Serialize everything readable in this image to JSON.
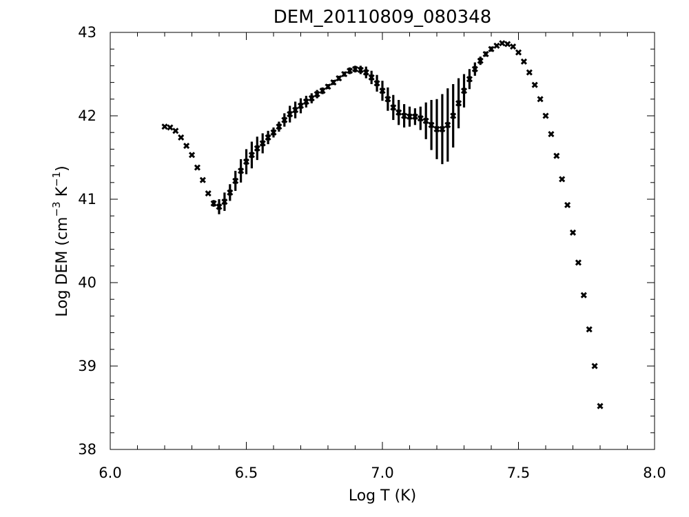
{
  "chart_data": {
    "type": "scatter",
    "title": "DEM_20110809_080348",
    "xlabel": "Log T (K)",
    "ylabel_parts": {
      "prefix": "Log DEM (cm",
      "exp1": "−3",
      "middle": " K",
      "exp2": "−1",
      "suffix": ")"
    },
    "xlim": [
      6.0,
      8.0
    ],
    "ylim": [
      38,
      43
    ],
    "xticks": [
      6.0,
      6.5,
      7.0,
      7.5,
      8.0
    ],
    "xtick_labels": [
      "6.0",
      "6.5",
      "7.0",
      "7.5",
      "8.0"
    ],
    "yticks": [
      38,
      39,
      40,
      41,
      42,
      43
    ],
    "ytick_labels": [
      "38",
      "39",
      "40",
      "41",
      "42",
      "43"
    ],
    "x_minor_step": 0.1,
    "y_minor_step": 0.2,
    "marker": "x",
    "color": "#000000",
    "grid": false,
    "series": [
      {
        "x": [
          6.2,
          6.22,
          6.24,
          6.26,
          6.28,
          6.3,
          6.32,
          6.34,
          6.36,
          6.38,
          6.4,
          6.42,
          6.44,
          6.46,
          6.48,
          6.5,
          6.52,
          6.54,
          6.56,
          6.58,
          6.6,
          6.62,
          6.64,
          6.66,
          6.68,
          6.7,
          6.72,
          6.74,
          6.76,
          6.78,
          6.8,
          6.82,
          6.84,
          6.86,
          6.88,
          6.9,
          6.92,
          6.94,
          6.96,
          6.98,
          7.0,
          7.02,
          7.04,
          7.06,
          7.08,
          7.1,
          7.12,
          7.14,
          7.16,
          7.18,
          7.2,
          7.22,
          7.24,
          7.26,
          7.28,
          7.3,
          7.32,
          7.34,
          7.36,
          7.38,
          7.4,
          7.42,
          7.44,
          7.46,
          7.48,
          7.5,
          7.52,
          7.54,
          7.56,
          7.58,
          7.6,
          7.62,
          7.64,
          7.66,
          7.68,
          7.7,
          7.72,
          7.74,
          7.76,
          7.78,
          7.8
        ],
        "y": [
          41.87,
          41.86,
          41.82,
          41.74,
          41.64,
          41.53,
          41.38,
          41.23,
          41.07,
          40.95,
          40.91,
          40.97,
          41.08,
          41.22,
          41.34,
          41.45,
          41.53,
          41.61,
          41.67,
          41.74,
          41.8,
          41.87,
          41.95,
          42.02,
          42.07,
          42.12,
          42.17,
          42.21,
          42.26,
          42.3,
          42.35,
          42.4,
          42.45,
          42.5,
          42.54,
          42.56,
          42.55,
          42.52,
          42.46,
          42.39,
          42.3,
          42.2,
          42.1,
          42.04,
          42.0,
          41.99,
          41.99,
          41.97,
          41.94,
          41.89,
          41.84,
          41.84,
          41.89,
          42.0,
          42.15,
          42.3,
          42.44,
          42.56,
          42.66,
          42.74,
          42.8,
          42.84,
          42.87,
          42.86,
          42.83,
          42.76,
          42.65,
          42.52,
          42.37,
          42.2,
          42.0,
          41.78,
          41.52,
          41.24,
          40.93,
          40.6,
          40.24,
          39.85,
          39.44,
          39.0,
          38.52
        ],
        "yerr": [
          0,
          0,
          0,
          0,
          0,
          0,
          0,
          0,
          0,
          0.04,
          0.09,
          0.11,
          0.1,
          0.12,
          0.14,
          0.15,
          0.16,
          0.14,
          0.12,
          0.08,
          0.06,
          0.06,
          0.08,
          0.1,
          0.1,
          0.09,
          0.07,
          0.06,
          0.05,
          0.04,
          0.03,
          0.03,
          0.03,
          0.03,
          0.04,
          0.04,
          0.05,
          0.07,
          0.08,
          0.1,
          0.12,
          0.14,
          0.15,
          0.15,
          0.14,
          0.12,
          0.1,
          0.14,
          0.22,
          0.3,
          0.36,
          0.42,
          0.44,
          0.38,
          0.3,
          0.2,
          0.12,
          0.08,
          0.05,
          0.03,
          0.03,
          0.02,
          0.02,
          0.02,
          0,
          0,
          0,
          0,
          0,
          0,
          0,
          0,
          0,
          0,
          0,
          0,
          0,
          0,
          0,
          0,
          0
        ]
      }
    ]
  }
}
